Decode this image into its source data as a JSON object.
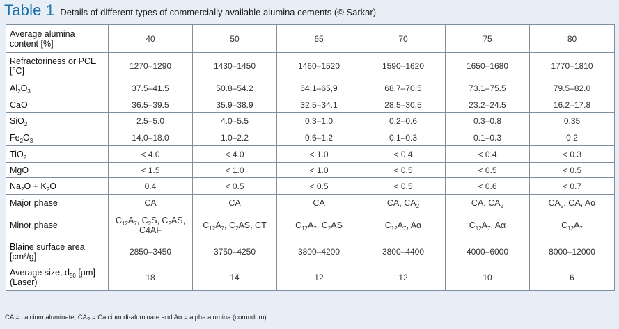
{
  "caption": {
    "label": "Table 1",
    "text": "Details of different types of commercially available alumina cements (© Sarkar)"
  },
  "table": {
    "columns": [
      "40",
      "50",
      "65",
      "70",
      "75",
      "80"
    ],
    "rows": [
      {
        "label": [
          "Average alumina",
          "content [%]"
        ],
        "values": [
          "40",
          "50",
          "65",
          "70",
          "75",
          "80"
        ]
      },
      {
        "label": [
          "Refractoriness or PCE",
          "[°C]"
        ],
        "values": [
          "1270–1290",
          "1430–1450",
          "1460–1520",
          "1590–1620",
          "1650–1680",
          "1770–1810"
        ]
      },
      {
        "label": "Al_2O_3",
        "values": [
          "37.5–41.5",
          "50.8–54.2",
          "64.1–65,9",
          "68.7–70.5",
          "73.1–75.5",
          "79.5–82.0"
        ]
      },
      {
        "label": "CaO",
        "values": [
          "36.5–39.5",
          "35.9–38.9",
          "32.5–34.1",
          "28.5–30.5",
          "23.2–24.5",
          "16.2–17.8"
        ]
      },
      {
        "label": "SiO_2",
        "values": [
          "2.5–5.0",
          "4.0–5.5",
          "0.3–1.0",
          "0.2–0.6",
          "0.3–0.8",
          "0.35"
        ]
      },
      {
        "label": "Fe_2O_3",
        "values": [
          "14.0–18.0",
          "1.0–2.2",
          "0.6–1.2",
          "0.1–0.3",
          "0.1–0.3",
          "0.2"
        ]
      },
      {
        "label": "TiO_2",
        "values": [
          "< 4.0",
          "< 4.0",
          "< 1.0",
          "< 0.4",
          "< 0.4",
          "< 0.3"
        ]
      },
      {
        "label": "MgO",
        "values": [
          "< 1.5",
          "< 1.0",
          "< 1.0",
          "< 0.5",
          "< 0.5",
          "< 0.5"
        ]
      },
      {
        "label": "Na_2O + K_2O",
        "values": [
          "0.4",
          "< 0.5",
          "< 0.5",
          "< 0.5",
          "< 0.6",
          "< 0.7"
        ]
      },
      {
        "label": "Major phase",
        "values": [
          "CA",
          "CA",
          "CA",
          "CA, CA_2",
          "CA, CA_2",
          "CA_2, CA, Aα"
        ]
      },
      {
        "label": "Minor phase",
        "values": [
          "C_12A_7, C_2S, C_2AS, C4AF",
          "C_12A_7, C_2AS, CT",
          "C_12A_7, C_2AS",
          "C_12A_7, Aα",
          "C_12A_7, Aα",
          "C_12A_7"
        ]
      },
      {
        "label": [
          "Blaine surface area",
          "[cm²/g]"
        ],
        "values": [
          "2850–3450",
          "3750–4250",
          "3800–4200",
          "3800–4400",
          "4000–6000",
          "8000–12000"
        ]
      },
      {
        "label": [
          "Average size, d_50 [µm]",
          "(Laser)"
        ],
        "values": [
          "18",
          "14",
          "12",
          "12",
          "10",
          "6"
        ]
      }
    ]
  },
  "footnote": "CA = calcium aluminate; CA_2 = Calcium di-aluminate and Aα = alpha alumina (corundum)"
}
